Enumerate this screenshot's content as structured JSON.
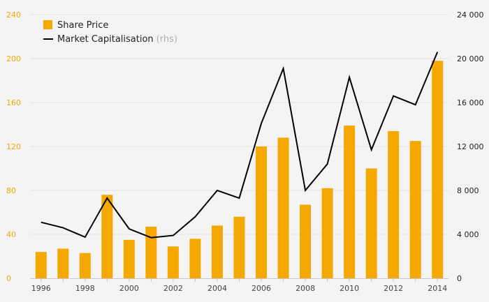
{
  "chart_data": {
    "type": "bar",
    "x": [
      "1996",
      "1997",
      "1998",
      "1999",
      "2000",
      "2001",
      "2002",
      "2003",
      "2004",
      "2005",
      "2006",
      "2007",
      "2008",
      "2009",
      "2010",
      "2011",
      "2012",
      "2013",
      "2014"
    ],
    "series": [
      {
        "name": "Share Price",
        "type": "bar",
        "axis": "left",
        "color": "#f5a800",
        "values": [
          24,
          27,
          23,
          76,
          35,
          47,
          29,
          36,
          48,
          56,
          120,
          128,
          67,
          82,
          139,
          100,
          134,
          125,
          198
        ]
      },
      {
        "name": "Market Capitalisation",
        "type": "line",
        "axis": "right",
        "color": "#000000",
        "values": [
          5100,
          4600,
          3750,
          7300,
          4500,
          3700,
          3900,
          5600,
          8000,
          7300,
          14100,
          19100,
          8000,
          10400,
          18300,
          11700,
          16600,
          15800,
          20600
        ]
      }
    ],
    "legend": {
      "bar_label": "Share Price",
      "line_label": "Market Capitalisation",
      "line_suffix": "(rhs)",
      "placement": "top-left"
    },
    "y_left": {
      "ylim": [
        0,
        240
      ],
      "ticks": [
        0,
        40,
        80,
        120,
        160,
        200,
        240
      ],
      "tick_labels": [
        "0",
        "40",
        "80",
        "120",
        "160",
        "200",
        "240"
      ],
      "color": "#f5a800"
    },
    "y_right": {
      "ylim": [
        0,
        24000
      ],
      "ticks": [
        0,
        4000,
        8000,
        12000,
        16000,
        20000,
        24000
      ],
      "tick_labels": [
        "0",
        "4 000",
        "8 000",
        "12 000",
        "16 000",
        "20 000",
        "24 000"
      ],
      "color": "#222222"
    },
    "x_tick_labels": [
      "1996",
      "1998",
      "2000",
      "2002",
      "2004",
      "2006",
      "2008",
      "2010",
      "2012",
      "2014"
    ],
    "grid": true
  }
}
